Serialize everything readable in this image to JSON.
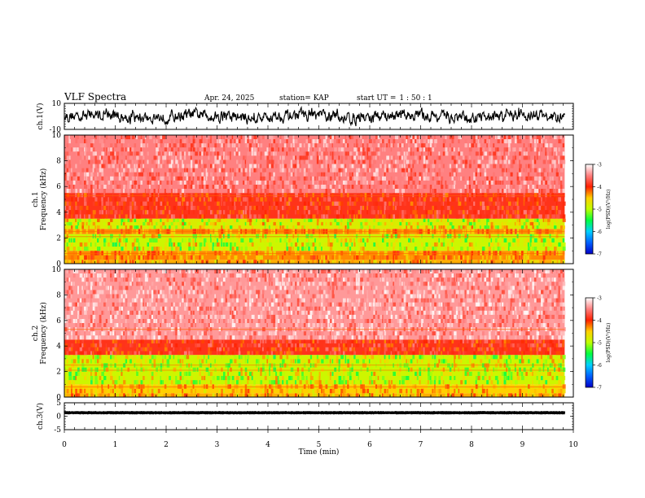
{
  "header": {
    "title": "VLF Spectra",
    "date": "Apr. 24, 2025",
    "station": "station= KAP",
    "start_label": "start  UT =",
    "start_time": "1 : 50 : 1"
  },
  "colorbar": {
    "label": "log(PSD)(V²/Hz)",
    "ticks": [
      "-3",
      "-4",
      "-5",
      "-6",
      "-7"
    ],
    "range": [
      -7,
      -3
    ],
    "colors": [
      "#0000c8",
      "#0060ff",
      "#00d0ff",
      "#00ff40",
      "#c0ff00",
      "#ffd000",
      "#ff2000",
      "#ff8080",
      "#ffffff"
    ]
  },
  "chart_data": [
    {
      "type": "line",
      "ylabel": "ch.1(V)",
      "ylim": [
        -10,
        10
      ],
      "yticks": [
        "10",
        "-10"
      ],
      "xlim": [
        0,
        10
      ],
      "description_series": "noisy waveform around 0 V with amplitude about 5 V",
      "series": [
        {
          "x_range": [
            0,
            9.83
          ],
          "y_mean": 0,
          "y_amplitude": 5,
          "color": "#000000"
        }
      ]
    },
    {
      "type": "heatmap",
      "ylabel": "ch.1\nFrequency (kHz)",
      "ylim": [
        0,
        10
      ],
      "yticks": [
        "10",
        "8",
        "6",
        "4",
        "2",
        "0"
      ],
      "xlim": [
        0,
        10
      ],
      "x_data_range": [
        0,
        9.83
      ],
      "bands": [
        {
          "from": 0,
          "to": 0.3,
          "level": -4.4
        },
        {
          "from": 0.3,
          "to": 1.0,
          "level": -4.3
        },
        {
          "from": 1.0,
          "to": 2.3,
          "level": -4.9
        },
        {
          "from": 2.3,
          "to": 2.7,
          "level": -4.3
        },
        {
          "from": 2.7,
          "to": 3.5,
          "level": -4.8
        },
        {
          "from": 3.5,
          "to": 5.5,
          "level": -3.9
        },
        {
          "from": 5.5,
          "to": 10,
          "level": -3.5
        }
      ]
    },
    {
      "type": "heatmap",
      "ylabel": "ch.2\nFrequency (kHz)",
      "ylim": [
        0,
        10
      ],
      "yticks": [
        "10",
        "8",
        "6",
        "4",
        "2",
        "0"
      ],
      "xlim": [
        0,
        10
      ],
      "x_data_range": [
        0,
        9.83
      ],
      "bands": [
        {
          "from": 0,
          "to": 0.3,
          "level": -4.4
        },
        {
          "from": 0.3,
          "to": 1.0,
          "level": -4.5
        },
        {
          "from": 1.0,
          "to": 3.3,
          "level": -4.9
        },
        {
          "from": 3.3,
          "to": 4.5,
          "level": -3.9
        },
        {
          "from": 4.5,
          "to": 10,
          "level": -3.4
        }
      ]
    },
    {
      "type": "line",
      "ylabel": "ch.3(V)",
      "ylim": [
        -5,
        5
      ],
      "yticks": [
        "5",
        "0",
        "-5"
      ],
      "xlim": [
        0,
        10
      ],
      "xlabel": "Time (min)",
      "xticks": [
        "0",
        "1",
        "2",
        "3",
        "4",
        "5",
        "6",
        "7",
        "8",
        "9",
        "10"
      ],
      "series": [
        {
          "x_range": [
            0,
            9.83
          ],
          "y_mean": 1.3,
          "y_amplitude": 0.6,
          "color": "#000000"
        }
      ]
    }
  ]
}
